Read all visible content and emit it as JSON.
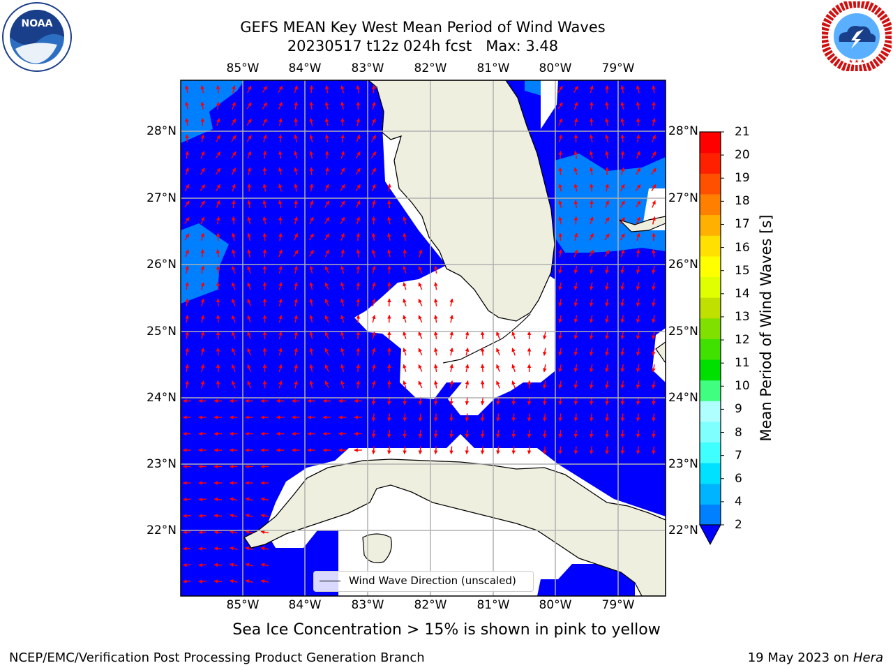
{
  "header": {
    "title_line1": "GEFS MEAN Key West Mean Period of Wind Waves",
    "title_line2": "20230517 t12z 024h fcst   Max: 3.48"
  },
  "logos": {
    "left": {
      "name": "noaa-logo",
      "text": "NOAA"
    },
    "right": {
      "name": "nws-logo"
    }
  },
  "map": {
    "lon_labels": [
      "85°W",
      "84°W",
      "83°W",
      "82°W",
      "81°W",
      "80°W",
      "79°W"
    ],
    "lat_labels": [
      "28°N",
      "27°N",
      "26°N",
      "25°N",
      "24°N",
      "23°N",
      "22°N"
    ],
    "legend_label": "Wind Wave Direction (unscaled)",
    "colors": {
      "ocean_low": "#0000ff",
      "ocean_mid": "#0080ff",
      "land": "#efefe0",
      "arrows": "#ff0000",
      "grid": "#b0b0b0"
    }
  },
  "colorbar": {
    "label": "Mean Period of Wind Waves [s]",
    "ticks": [
      "2",
      "4",
      "6",
      "7",
      "8",
      "9",
      "10",
      "11",
      "12",
      "13",
      "14",
      "15",
      "16",
      "17",
      "18",
      "19",
      "20",
      "21"
    ],
    "colors": [
      "#0080ff",
      "#00b4ff",
      "#00e0ff",
      "#40ffff",
      "#80ffff",
      "#b0ffff",
      "#40ff80",
      "#00e000",
      "#40e000",
      "#80e000",
      "#c0e000",
      "#e0ff00",
      "#ffff00",
      "#ffe000",
      "#ffb000",
      "#ff8000",
      "#ff5000",
      "#ff2000",
      "#ff0000"
    ]
  },
  "notes": {
    "ice": "Sea Ice Concentration > 15% is shown in pink to yellow"
  },
  "footer": {
    "left": "NCEP/EMC/Verification Post Processing Product Generation Branch",
    "right_date": "19 May 2023 on ",
    "right_host": "Hera"
  }
}
